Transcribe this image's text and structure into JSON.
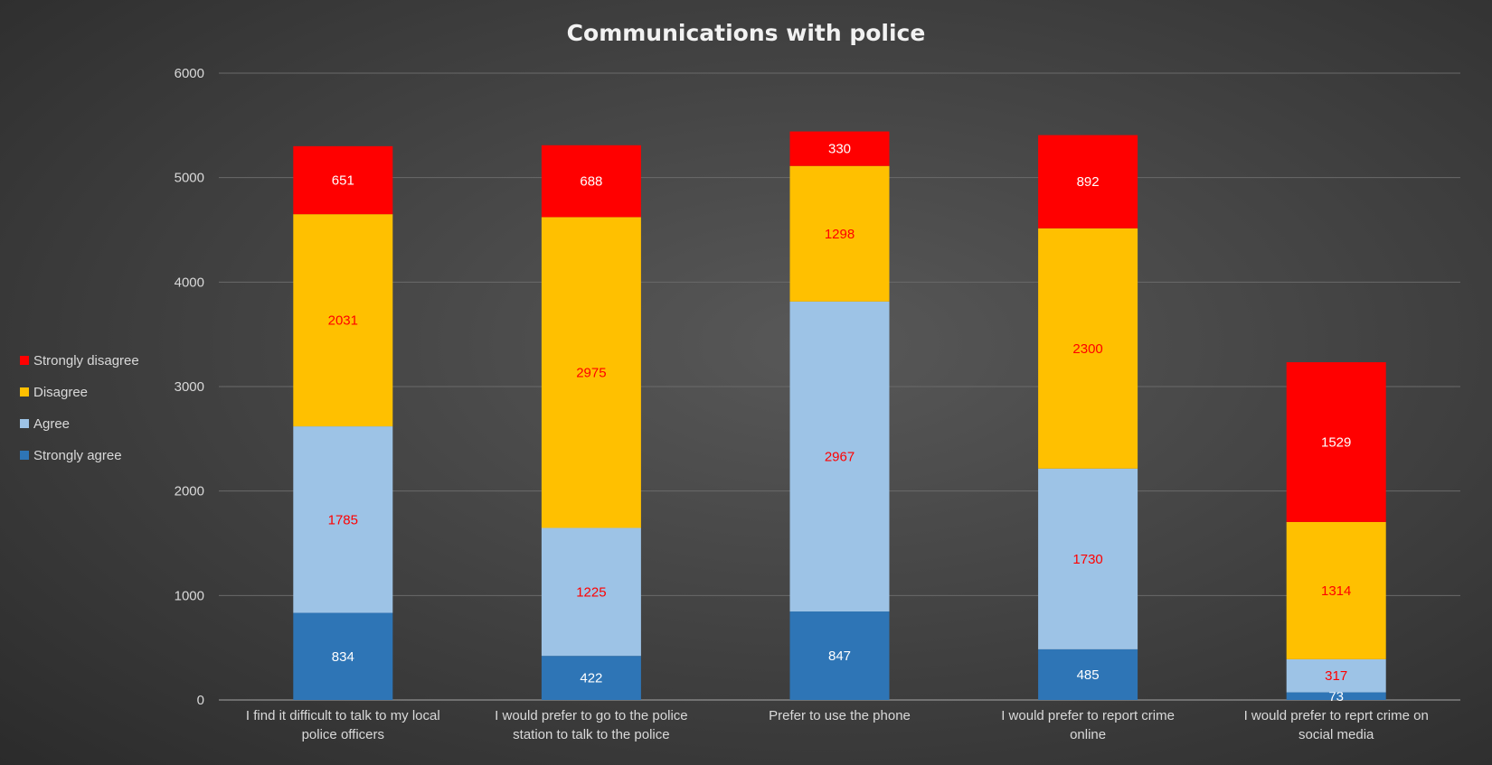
{
  "chart_data": {
    "type": "stacked-bar",
    "title": "Communications with police",
    "categories": [
      [
        "I find it difficult to talk to my local",
        "police officers"
      ],
      [
        "I would prefer to go to the police",
        "station to talk to the police"
      ],
      [
        "Prefer to use the phone"
      ],
      [
        "I would prefer to report crime",
        "online"
      ],
      [
        "I would prefer to reprt crime on",
        "social media"
      ]
    ],
    "series": [
      {
        "name": "Strongly agree",
        "color": "#2E75B6",
        "label_color": "#FFFFFF",
        "values": [
          834,
          422,
          847,
          485,
          73
        ]
      },
      {
        "name": "Agree",
        "color": "#9DC3E6",
        "label_color": "#FF0000",
        "values": [
          1785,
          1225,
          2967,
          1730,
          317
        ]
      },
      {
        "name": "Disagree",
        "color": "#FFC000",
        "label_color": "#FF0000",
        "values": [
          2031,
          2975,
          1298,
          2300,
          1314
        ]
      },
      {
        "name": "Strongly disagree",
        "color": "#FF0000",
        "label_color": "#FFFFFF",
        "values": [
          651,
          688,
          330,
          892,
          1529
        ]
      }
    ],
    "ylim": [
      0,
      6000
    ],
    "yticks": [
      0,
      1000,
      2000,
      3000,
      4000,
      5000,
      6000
    ],
    "grid": true,
    "legend": "left",
    "xlabel": "",
    "ylabel": ""
  }
}
